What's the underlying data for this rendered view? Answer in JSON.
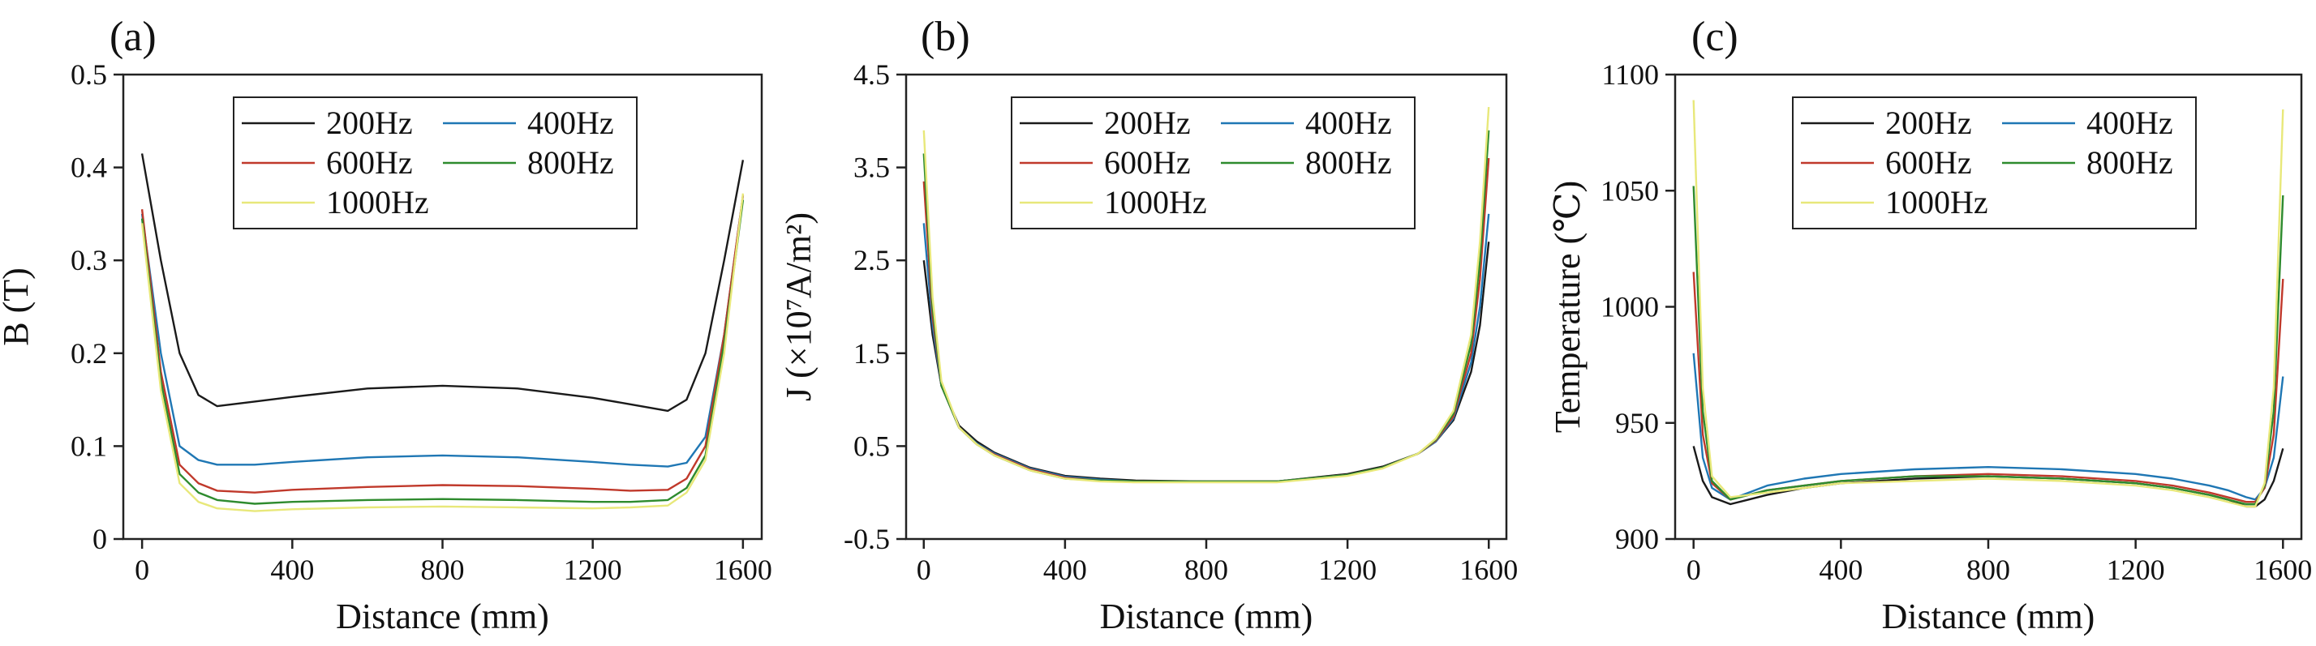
{
  "chart_data": [
    {
      "type": "line",
      "panel_label": "(a)",
      "xlabel": "Distance (mm)",
      "ylabel": "B (T)",
      "xlim": [
        -50,
        1650
      ],
      "ylim": [
        0,
        0.5
      ],
      "xticks": [
        0,
        400,
        800,
        1200,
        1600
      ],
      "xtick_labels": [
        "0",
        "400",
        "800",
        "1200",
        "1600"
      ],
      "yticks": [
        0,
        0.1,
        0.2,
        0.3,
        0.4,
        0.5
      ],
      "ytick_labels": [
        "0",
        "0.1",
        "0.2",
        "0.3",
        "0.4",
        "0.5"
      ],
      "x": [
        0,
        50,
        100,
        150,
        200,
        300,
        400,
        600,
        800,
        1000,
        1200,
        1300,
        1400,
        1450,
        1500,
        1550,
        1600
      ],
      "series": [
        {
          "name": "200Hz",
          "color": "#1a1a1a",
          "values": [
            0.415,
            0.3,
            0.2,
            0.155,
            0.143,
            0.148,
            0.153,
            0.162,
            0.165,
            0.162,
            0.152,
            0.145,
            0.138,
            0.15,
            0.2,
            0.3,
            0.408
          ]
        },
        {
          "name": "400Hz",
          "color": "#1f77b4",
          "values": [
            0.35,
            0.2,
            0.1,
            0.085,
            0.08,
            0.08,
            0.083,
            0.088,
            0.09,
            0.088,
            0.083,
            0.08,
            0.078,
            0.082,
            0.11,
            0.22,
            0.37
          ]
        },
        {
          "name": "600Hz",
          "color": "#c0392b",
          "values": [
            0.355,
            0.18,
            0.08,
            0.06,
            0.052,
            0.05,
            0.053,
            0.056,
            0.058,
            0.057,
            0.054,
            0.052,
            0.053,
            0.065,
            0.1,
            0.22,
            0.37
          ]
        },
        {
          "name": "800Hz",
          "color": "#2e8b2e",
          "values": [
            0.345,
            0.17,
            0.07,
            0.05,
            0.042,
            0.038,
            0.04,
            0.042,
            0.043,
            0.042,
            0.04,
            0.04,
            0.042,
            0.055,
            0.09,
            0.21,
            0.365
          ]
        },
        {
          "name": "1000Hz",
          "color": "#e8e87a",
          "values": [
            0.34,
            0.16,
            0.06,
            0.04,
            0.033,
            0.03,
            0.032,
            0.034,
            0.035,
            0.034,
            0.033,
            0.034,
            0.036,
            0.05,
            0.085,
            0.2,
            0.372
          ]
        }
      ],
      "legend": "top-center"
    },
    {
      "type": "line",
      "panel_label": "(b)",
      "xlabel": "Distance (mm)",
      "ylabel": "J (×10⁷A/m²)",
      "xlim": [
        -50,
        1650
      ],
      "ylim": [
        -0.5,
        4.5
      ],
      "xticks": [
        0,
        400,
        800,
        1200,
        1600
      ],
      "xtick_labels": [
        "0",
        "400",
        "800",
        "1200",
        "1600"
      ],
      "yticks": [
        -0.5,
        0.5,
        1.5,
        2.5,
        3.5,
        4.5
      ],
      "ytick_labels": [
        "-0.5",
        "0.5",
        "1.5",
        "2.5",
        "3.5",
        "4.5"
      ],
      "x": [
        0,
        25,
        50,
        100,
        150,
        200,
        300,
        400,
        500,
        600,
        800,
        1000,
        1200,
        1300,
        1400,
        1450,
        1500,
        1550,
        1575,
        1600
      ],
      "series": [
        {
          "name": "200Hz",
          "color": "#1a1a1a",
          "values": [
            2.5,
            1.7,
            1.15,
            0.72,
            0.55,
            0.43,
            0.27,
            0.18,
            0.15,
            0.13,
            0.12,
            0.12,
            0.2,
            0.28,
            0.42,
            0.55,
            0.78,
            1.3,
            1.8,
            2.7
          ]
        },
        {
          "name": "400Hz",
          "color": "#1f77b4",
          "values": [
            2.9,
            1.8,
            1.15,
            0.7,
            0.53,
            0.42,
            0.26,
            0.17,
            0.14,
            0.12,
            0.12,
            0.12,
            0.19,
            0.27,
            0.42,
            0.55,
            0.8,
            1.4,
            2.0,
            3.0
          ]
        },
        {
          "name": "600Hz",
          "color": "#c0392b",
          "values": [
            3.35,
            1.9,
            1.15,
            0.7,
            0.52,
            0.41,
            0.25,
            0.16,
            0.13,
            0.12,
            0.12,
            0.12,
            0.19,
            0.27,
            0.42,
            0.56,
            0.82,
            1.5,
            2.3,
            3.6
          ]
        },
        {
          "name": "800Hz",
          "color": "#2e8b2e",
          "values": [
            3.65,
            2.0,
            1.15,
            0.7,
            0.52,
            0.4,
            0.24,
            0.15,
            0.13,
            0.12,
            0.12,
            0.12,
            0.19,
            0.27,
            0.42,
            0.57,
            0.85,
            1.6,
            2.5,
            3.9
          ]
        },
        {
          "name": "1000Hz",
          "color": "#e8e87a",
          "values": [
            3.9,
            2.1,
            1.2,
            0.7,
            0.52,
            0.4,
            0.24,
            0.15,
            0.12,
            0.11,
            0.11,
            0.11,
            0.18,
            0.26,
            0.42,
            0.58,
            0.88,
            1.7,
            2.7,
            4.15
          ]
        }
      ],
      "legend": "top-center"
    },
    {
      "type": "line",
      "panel_label": "(c)",
      "xlabel": "Distance (mm)",
      "ylabel": "Temperature (℃)",
      "xlim": [
        -50,
        1650
      ],
      "ylim": [
        900,
        1100
      ],
      "xticks": [
        0,
        400,
        800,
        1200,
        1600
      ],
      "xtick_labels": [
        "0",
        "400",
        "800",
        "1200",
        "1600"
      ],
      "yticks": [
        900,
        950,
        1000,
        1050,
        1100
      ],
      "ytick_labels": [
        "900",
        "950",
        "1000",
        "1050",
        "1100"
      ],
      "x": [
        0,
        25,
        50,
        100,
        150,
        200,
        300,
        400,
        600,
        800,
        1000,
        1200,
        1300,
        1400,
        1450,
        1500,
        1525,
        1550,
        1575,
        1600
      ],
      "series": [
        {
          "name": "200Hz",
          "color": "#1a1a1a",
          "values": [
            940,
            925,
            918,
            915,
            917,
            919,
            922,
            924,
            926,
            927,
            926,
            924,
            922,
            919,
            917,
            914,
            914,
            917,
            925,
            939
          ]
        },
        {
          "name": "400Hz",
          "color": "#1f77b4",
          "values": [
            980,
            935,
            922,
            917,
            920,
            923,
            926,
            928,
            930,
            931,
            930,
            928,
            926,
            923,
            921,
            918,
            917,
            922,
            935,
            970
          ]
        },
        {
          "name": "600Hz",
          "color": "#c0392b",
          "values": [
            1015,
            945,
            924,
            917,
            919,
            921,
            923,
            925,
            927,
            928,
            927,
            925,
            923,
            920,
            918,
            916,
            916,
            922,
            945,
            1012
          ]
        },
        {
          "name": "800Hz",
          "color": "#2e8b2e",
          "values": [
            1052,
            955,
            925,
            917,
            919,
            921,
            923,
            925,
            927,
            927,
            926,
            924,
            922,
            919,
            917,
            915,
            915,
            923,
            955,
            1048
          ]
        },
        {
          "name": "1000Hz",
          "color": "#e8e87a",
          "values": [
            1089,
            965,
            927,
            918,
            919,
            920,
            922,
            924,
            925,
            926,
            925,
            923,
            921,
            918,
            916,
            914,
            914,
            924,
            965,
            1085
          ]
        }
      ],
      "legend": "top-center"
    }
  ]
}
